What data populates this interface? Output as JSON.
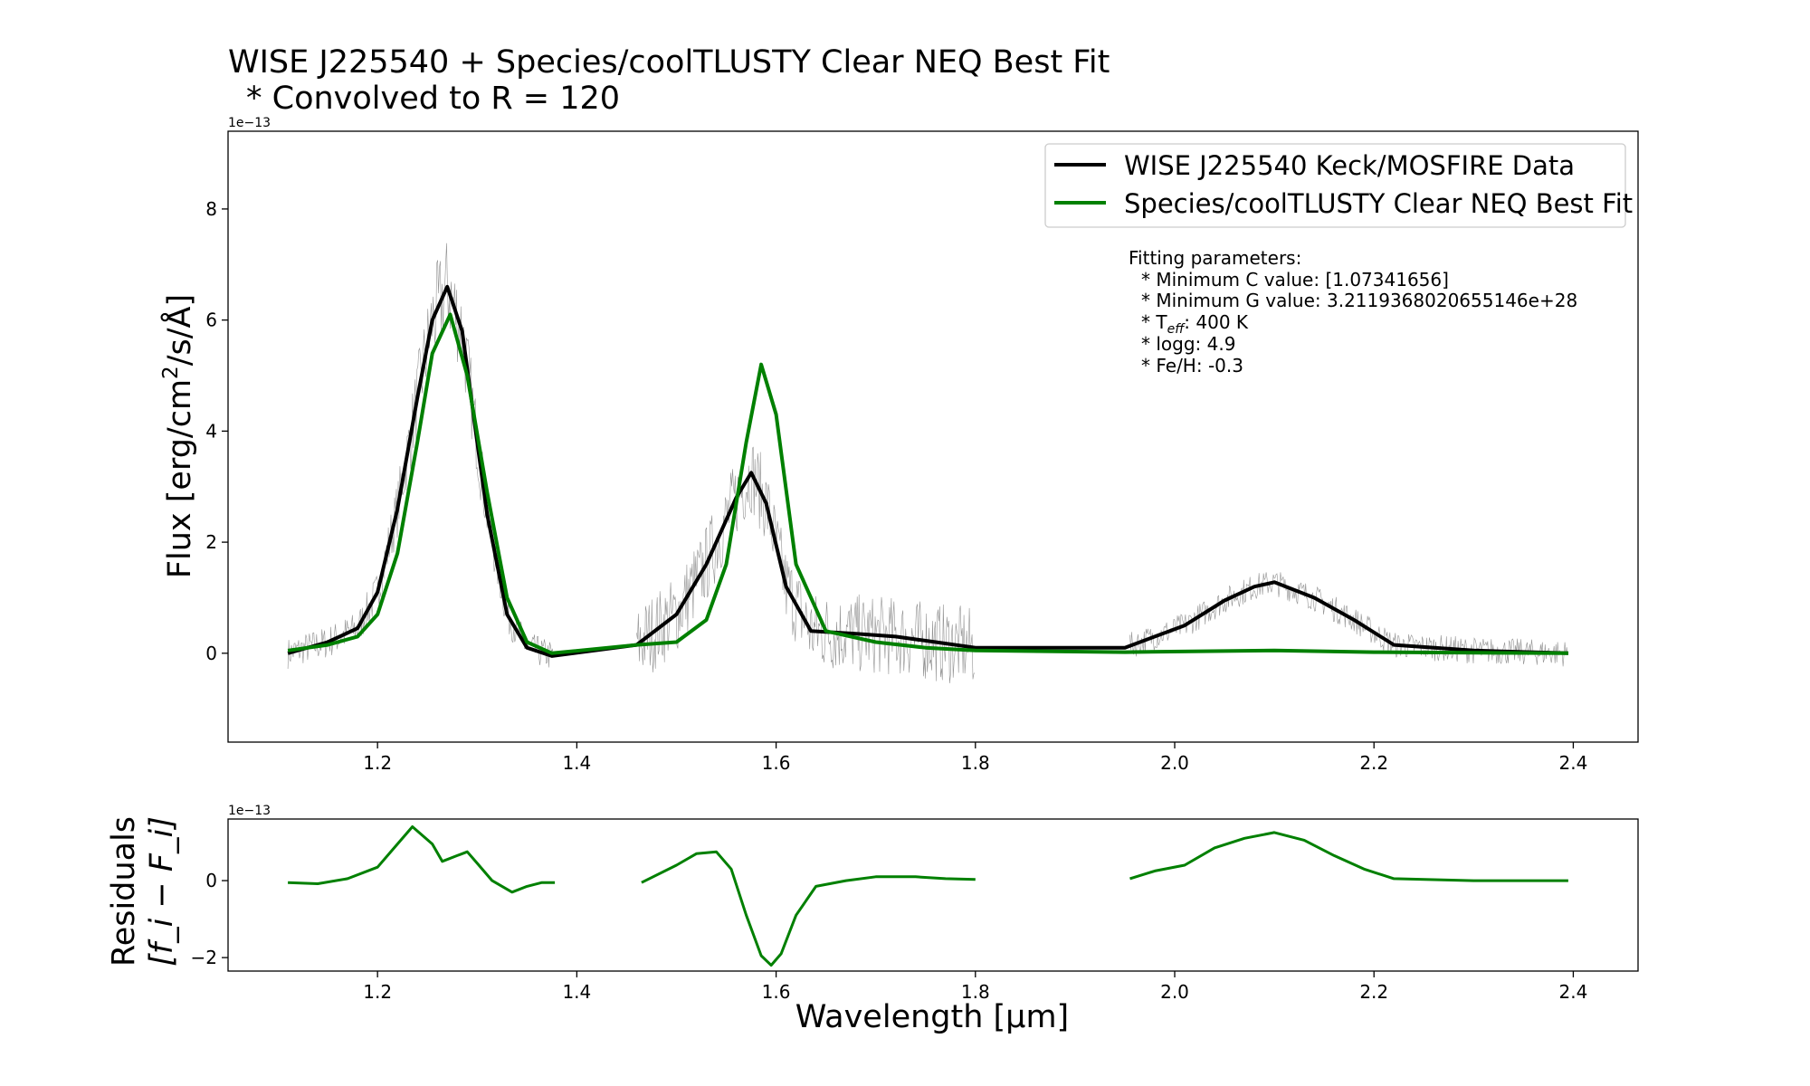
{
  "title_line1": "WISE J225540 + Species/coolTLUSTY Clear NEQ Best Fit",
  "title_line2": "* Convolved to R = 120",
  "legend": {
    "data_label": "WISE J225540 Keck/MOSFIRE Data",
    "model_label": "Species/coolTLUSTY Clear NEQ Best Fit"
  },
  "params": {
    "header": "Fitting parameters:",
    "c_line": "* Minimum C value: [1.07341656]",
    "g_line": "* Minimum G value: 3.2119368020655146e+28",
    "teff_prefix": "* T",
    "teff_sub": "eff",
    "teff_suffix": ": 400 K",
    "logg_line": "* logg: 4.9",
    "feh_line": "* Fe/H: -0.3"
  },
  "colors": {
    "data": "#000000",
    "model": "#008000",
    "raw": "#808080"
  },
  "chart_data": [
    {
      "type": "line",
      "panel": "main",
      "ylabel_prefix": "Flux [erg/cm",
      "ylabel_sup": "2",
      "ylabel_suffix": "/s/Å]",
      "offset_text": "1e−13",
      "xlim": [
        1.05,
        2.465
      ],
      "ylim": [
        -1.6,
        9.4
      ],
      "xticks": [
        1.2,
        1.4,
        1.6,
        1.8,
        2.0,
        2.2,
        2.4
      ],
      "xtick_labels": [
        "1.2",
        "1.4",
        "1.6",
        "1.8",
        "2.0",
        "2.2",
        "2.4"
      ],
      "yticks": [
        0,
        2,
        4,
        6,
        8
      ],
      "ytick_labels": [
        "0",
        "2",
        "4",
        "6",
        "8"
      ],
      "series": [
        {
          "name": "WISE J225540 Keck/MOSFIRE Data",
          "x": [
            1.11,
            1.15,
            1.18,
            1.2,
            1.22,
            1.24,
            1.255,
            1.27,
            1.285,
            1.3,
            1.31,
            1.33,
            1.35,
            1.375,
            1.46,
            1.5,
            1.53,
            1.56,
            1.575,
            1.59,
            1.61,
            1.635,
            1.68,
            1.72,
            1.76,
            1.8,
            1.95,
            1.98,
            2.01,
            2.05,
            2.08,
            2.1,
            2.14,
            2.18,
            2.22,
            2.3,
            2.395
          ],
          "y": [
            0.0,
            0.2,
            0.45,
            1.1,
            2.6,
            4.6,
            6.0,
            6.6,
            5.8,
            3.8,
            2.5,
            0.7,
            0.1,
            -0.05,
            0.15,
            0.7,
            1.6,
            2.8,
            3.25,
            2.7,
            1.2,
            0.4,
            0.35,
            0.3,
            0.2,
            0.1,
            0.1,
            0.3,
            0.5,
            0.95,
            1.2,
            1.28,
            1.0,
            0.6,
            0.15,
            0.05,
            0.0
          ]
        },
        {
          "name": "Species/coolTLUSTY Clear NEQ Best Fit",
          "x": [
            1.11,
            1.15,
            1.18,
            1.2,
            1.22,
            1.24,
            1.255,
            1.273,
            1.29,
            1.31,
            1.33,
            1.35,
            1.375,
            1.46,
            1.5,
            1.53,
            1.55,
            1.57,
            1.585,
            1.6,
            1.62,
            1.65,
            1.7,
            1.75,
            1.8,
            1.95,
            2.1,
            2.2,
            2.395
          ],
          "y": [
            0.05,
            0.15,
            0.3,
            0.7,
            1.8,
            3.8,
            5.4,
            6.1,
            5.0,
            2.9,
            1.0,
            0.2,
            0.0,
            0.15,
            0.2,
            0.6,
            1.6,
            3.8,
            5.2,
            4.3,
            1.6,
            0.4,
            0.2,
            0.1,
            0.05,
            0.02,
            0.05,
            0.02,
            0.0
          ]
        }
      ]
    },
    {
      "type": "line",
      "panel": "residuals",
      "ylabel_line1": "Residuals",
      "ylabel_line2": "[f_i − F_i]",
      "xlabel": "Wavelength [μm]",
      "offset_text": "1e−13",
      "xlim": [
        1.05,
        2.465
      ],
      "ylim": [
        -2.35,
        1.6
      ],
      "xticks": [
        1.2,
        1.4,
        1.6,
        1.8,
        2.0,
        2.2,
        2.4
      ],
      "xtick_labels": [
        "1.2",
        "1.4",
        "1.6",
        "1.8",
        "2.0",
        "2.2",
        "2.4"
      ],
      "yticks": [
        -2,
        0
      ],
      "ytick_labels": [
        "−2",
        "0"
      ],
      "series": [
        {
          "name": "residuals",
          "segments": [
            {
              "x": [
                1.11,
                1.14,
                1.17,
                1.2,
                1.215,
                1.235,
                1.255,
                1.265,
                1.28,
                1.29,
                1.3,
                1.315,
                1.335,
                1.35,
                1.365,
                1.378
              ],
              "y": [
                -0.05,
                -0.08,
                0.05,
                0.35,
                0.8,
                1.4,
                0.95,
                0.5,
                0.65,
                0.75,
                0.45,
                0.0,
                -0.3,
                -0.15,
                -0.05,
                -0.05
              ]
            },
            {
              "x": [
                1.465,
                1.5,
                1.52,
                1.54,
                1.555,
                1.57,
                1.585,
                1.595,
                1.605,
                1.62,
                1.64,
                1.67,
                1.7,
                1.74,
                1.77,
                1.8
              ],
              "y": [
                -0.05,
                0.4,
                0.7,
                0.75,
                0.3,
                -0.9,
                -1.95,
                -2.2,
                -1.9,
                -0.9,
                -0.15,
                0.0,
                0.1,
                0.1,
                0.05,
                0.03
              ]
            },
            {
              "x": [
                1.955,
                1.98,
                2.01,
                2.04,
                2.07,
                2.1,
                2.13,
                2.16,
                2.19,
                2.22,
                2.3,
                2.395
              ],
              "y": [
                0.05,
                0.25,
                0.4,
                0.85,
                1.1,
                1.25,
                1.05,
                0.65,
                0.3,
                0.05,
                0.0,
                0.0
              ]
            }
          ]
        }
      ]
    }
  ]
}
